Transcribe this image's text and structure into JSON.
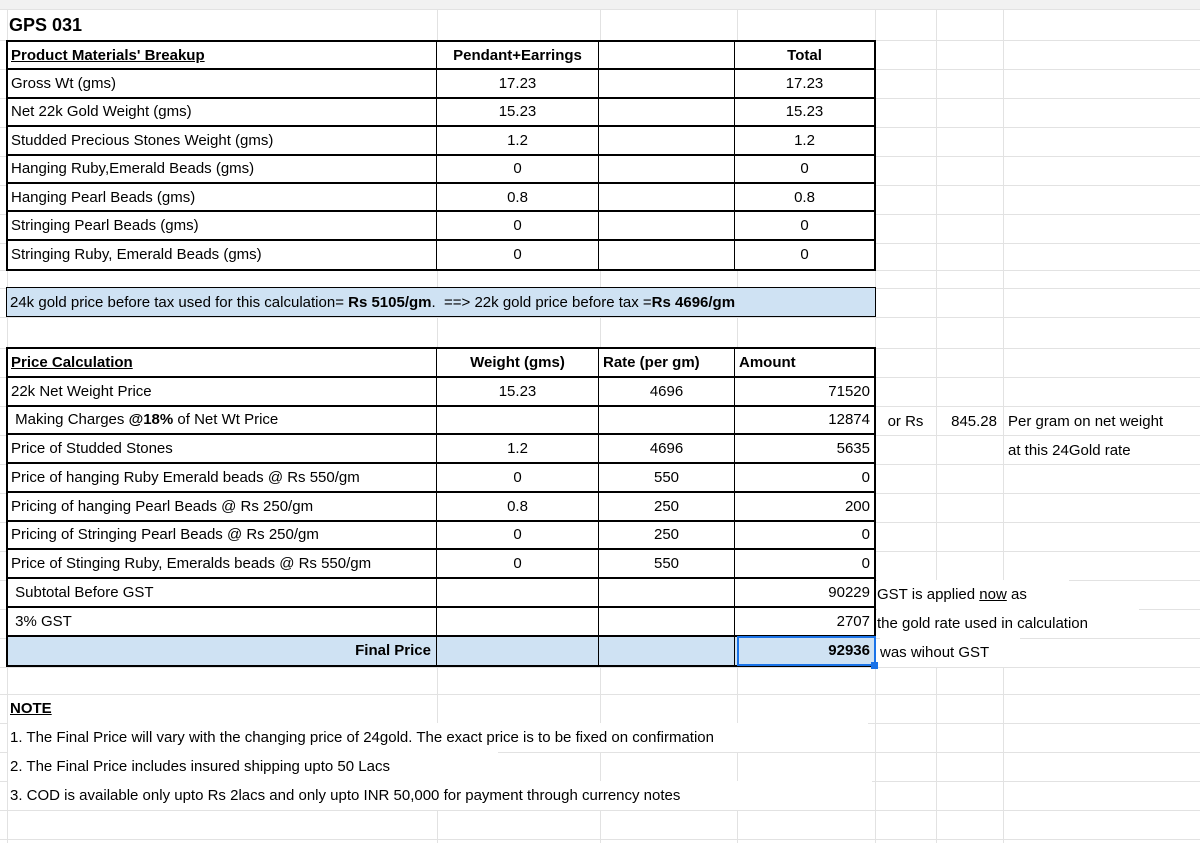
{
  "title": "GPS 031",
  "colors": {
    "highlight": "#cfe2f3",
    "selection": "#1a73e8",
    "gridline": "#e2e2e2",
    "strip": "#f1f1f1"
  },
  "materials_table": {
    "header": {
      "label": "Product Materials' Breakup",
      "pendant": "Pendant+Earrings",
      "blank": "",
      "total": "Total"
    },
    "rows": [
      {
        "label": "Gross Wt (gms)",
        "pendant": "17.23",
        "blank": "",
        "total": "17.23"
      },
      {
        "label": "Net 22k Gold Weight (gms)",
        "pendant": "15.23",
        "blank": "",
        "total": "15.23"
      },
      {
        "label": "Studded Precious Stones Weight (gms)",
        "pendant": "1.2",
        "blank": "",
        "total": "1.2"
      },
      {
        "label": "Hanging Ruby,Emerald Beads (gms)",
        "pendant": "0",
        "blank": "",
        "total": "0"
      },
      {
        "label": "Hanging Pearl Beads (gms)",
        "pendant": "0.8",
        "blank": "",
        "total": "0.8"
      },
      {
        "label": "Stringing Pearl Beads (gms)",
        "pendant": "0",
        "blank": "",
        "total": "0"
      },
      {
        "label": "Stringing Ruby, Emerald Beads (gms)",
        "pendant": "0",
        "blank": "",
        "total": "0"
      }
    ]
  },
  "gold_price_note": {
    "part1": "24k gold price before tax used for this calculation= ",
    "bold1": "Rs 5105/gm",
    "part2": ".  ==> 22k gold price before tax =",
    "bold2": "Rs 4696/gm"
  },
  "price_table": {
    "header": {
      "label": "Price Calculation",
      "weight": "Weight (gms)",
      "rate": "Rate (per gm)",
      "amount": "Amount"
    },
    "rows": [
      {
        "label": "22k Net Weight Price",
        "weight": "15.23",
        "rate": "4696",
        "amount": "71520"
      },
      {
        "label_pre": " Making Charges ",
        "label_bold": "@18%",
        "label_post": " of Net Wt Price",
        "weight": "",
        "rate": "",
        "amount": "12874"
      },
      {
        "label": "Price of Studded Stones",
        "weight": "1.2",
        "rate": "4696",
        "amount": "5635"
      },
      {
        "label": "Price of hanging Ruby Emerald beads @ Rs 550/gm",
        "weight": "0",
        "rate": "550",
        "amount": "0"
      },
      {
        "label": "Pricing of hanging Pearl Beads @ Rs 250/gm",
        "weight": "0.8",
        "rate": "250",
        "amount": "200"
      },
      {
        "label": "Pricing of Stringing Pearl Beads @ Rs 250/gm",
        "weight": "0",
        "rate": "250",
        "amount": "0"
      },
      {
        "label": "Price of Stinging Ruby, Emeralds beads @ Rs 550/gm",
        "weight": "0",
        "rate": "550",
        "amount": "0"
      },
      {
        "label": " Subtotal Before GST",
        "weight": "",
        "rate": "",
        "amount": "90229"
      },
      {
        "label": " 3% GST",
        "weight": "",
        "rate": "",
        "amount": "2707"
      },
      {
        "label": "Final Price",
        "weight": "",
        "rate": "",
        "amount": "92936"
      }
    ]
  },
  "annotations": {
    "or_rs": "or Rs",
    "per_gram_value": "845.28",
    "per_gram_text": "Per gram on net weight",
    "at_rate_text": "at this 24Gold rate",
    "gst1_pre": "GST is applied ",
    "gst1_underline": "now",
    "gst1_post": " as",
    "gst2": "the gold rate used in calculation",
    "gst3": "was wihout GST"
  },
  "notes": {
    "heading": "NOTE",
    "item1": "1. The Final Price will vary with the changing price of 24gold. The exact price is to be fixed on confirmation",
    "item2": "2. The Final Price includes insured shipping upto 50 Lacs",
    "item3": "3. COD is available only upto Rs 2lacs and only upto INR 50,000 for payment through currency notes"
  }
}
